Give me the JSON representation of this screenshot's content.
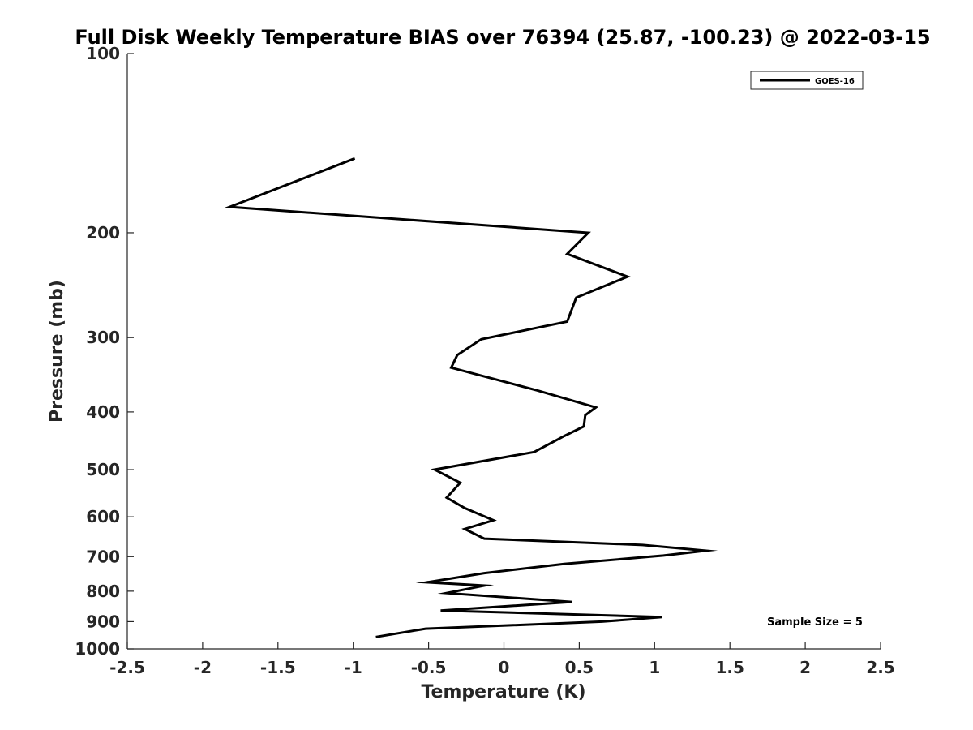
{
  "chart_data": {
    "type": "line",
    "title": "Full Disk Weekly Temperature BIAS over 76394 (25.87, -100.23) @ 2022-03-15",
    "xlabel": "Temperature (K)",
    "ylabel": "Pressure (mb)",
    "xlim": [
      -2.5,
      2.5
    ],
    "ylim": [
      100,
      1000
    ],
    "y_scale": "log",
    "y_reversed": true,
    "grid": false,
    "legend_position": "top-right",
    "xticks": [
      -2.5,
      -2,
      -1.5,
      -1,
      -0.5,
      0,
      0.5,
      1,
      1.5,
      2,
      2.5
    ],
    "xtick_labels": [
      "-2.5",
      "-2",
      "-1.5",
      "-1",
      "-0.5",
      "0",
      "0.5",
      "1",
      "1.5",
      "2",
      "2.5"
    ],
    "yticks": [
      100,
      200,
      300,
      400,
      500,
      600,
      700,
      800,
      900,
      1000
    ],
    "ytick_labels": [
      "100",
      "200",
      "300",
      "400",
      "500",
      "600",
      "700",
      "800",
      "900",
      "1000"
    ],
    "series": [
      {
        "name": "GOES-16",
        "color": "#000000",
        "x": [
          -0.99,
          -1.82,
          0.56,
          0.42,
          0.82,
          0.48,
          0.42,
          -0.15,
          -0.31,
          -0.35,
          0.22,
          0.61,
          0.54,
          0.53,
          0.4,
          0.2,
          -0.46,
          -0.29,
          -0.38,
          -0.26,
          -0.07,
          -0.26,
          -0.13,
          0.92,
          1.34,
          1.06,
          0.4,
          -0.13,
          -0.51,
          -0.13,
          -0.38,
          0.45,
          -0.42,
          1.05,
          0.65,
          -0.52,
          -0.85
        ],
        "y": [
          150,
          181,
          200,
          217,
          237,
          257,
          282,
          302,
          321,
          337,
          368,
          393,
          405,
          423,
          439,
          467,
          500,
          526,
          557,
          580,
          608,
          629,
          653,
          669,
          684,
          697,
          720,
          746,
          773,
          783,
          806,
          834,
          862,
          884,
          900,
          925,
          955
        ]
      }
    ],
    "annotations": [
      "Sample Size = 5"
    ]
  }
}
